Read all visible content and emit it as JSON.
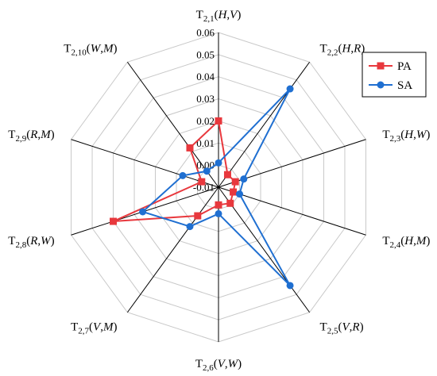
{
  "chart_data": {
    "type": "radar",
    "title": "",
    "rlim": [
      -0.01,
      0.06
    ],
    "r_ticks": [
      "-0.01",
      "0.00",
      "0.01",
      "0.02",
      "0.03",
      "0.04",
      "0.05",
      "0.06"
    ],
    "grid": true,
    "legend_position": "top-right",
    "categories": [
      {
        "label": "T",
        "sub": "2,1",
        "pair": [
          "H",
          "V"
        ]
      },
      {
        "label": "T",
        "sub": "2,2",
        "pair": [
          "H",
          "R"
        ]
      },
      {
        "label": "T",
        "sub": "2,3",
        "pair": [
          "H",
          "W"
        ]
      },
      {
        "label": "T",
        "sub": "2,4",
        "pair": [
          "H",
          "M"
        ]
      },
      {
        "label": "T",
        "sub": "2,5",
        "pair": [
          "V",
          "R"
        ]
      },
      {
        "label": "T",
        "sub": "2,6",
        "pair": [
          "V",
          "W"
        ]
      },
      {
        "label": "T",
        "sub": "2,7",
        "pair": [
          "V",
          "M"
        ]
      },
      {
        "label": "T",
        "sub": "2,8",
        "pair": [
          "R",
          "W"
        ]
      },
      {
        "label": "T",
        "sub": "2,9",
        "pair": [
          "R",
          "M"
        ]
      },
      {
        "label": "T",
        "sub": "2,10",
        "pair": [
          "W",
          "M"
        ]
      }
    ],
    "series": [
      {
        "name": "PA",
        "color": "#e8383d",
        "marker": "square",
        "values": [
          0.02,
          -0.003,
          -0.002,
          -0.003,
          -0.001,
          -0.002,
          0.006,
          0.04,
          -0.002,
          0.012
        ]
      },
      {
        "name": "SA",
        "color": "#1f6fd1",
        "marker": "circle",
        "values": [
          0.001,
          0.045,
          0.002,
          0.0,
          0.045,
          0.002,
          0.012,
          0.026,
          0.007,
          -0.001
        ]
      }
    ]
  }
}
